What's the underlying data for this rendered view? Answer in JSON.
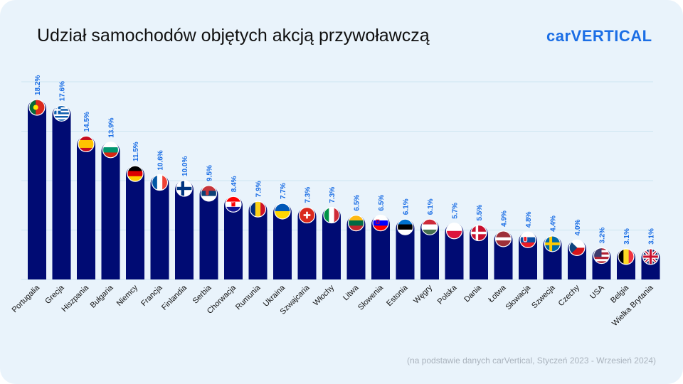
{
  "header": {
    "title": "Udział samochodów objętych akcją przywoławczą",
    "brand": "carVERTICAL"
  },
  "footer": {
    "source": "(na podstawie danych carVertical, Styczeń 2023 - Wrzesień 2024)"
  },
  "colors": {
    "bar": "#000b73",
    "value_label": "#1b6ee5",
    "background": "#e9f3fb",
    "gridline": "#cde5f0"
  },
  "chart_data": {
    "type": "bar",
    "title": "Udział samochodów objętych akcją przywoławczą",
    "ylim": [
      0,
      20
    ],
    "grid": true,
    "value_suffix": "%",
    "categories": [
      "Portugalia",
      "Grecja",
      "Hiszpania",
      "Bułgaria",
      "Niemcy",
      "Francja",
      "Finlandia",
      "Serbia",
      "Chorwacja",
      "Rumunia",
      "Ukraina",
      "Szwajcaria",
      "Włochy",
      "Litwa",
      "Słowenia",
      "Estonia",
      "Węgry",
      "Polska",
      "Dania",
      "Łotwa",
      "Słowacja",
      "Szwecja",
      "Czechy",
      "USA",
      "Belgia",
      "Wielka Brytania"
    ],
    "values": [
      18.2,
      17.6,
      14.5,
      13.9,
      11.5,
      10.6,
      10.0,
      9.5,
      8.4,
      7.9,
      7.7,
      7.3,
      7.3,
      6.5,
      6.5,
      6.1,
      6.1,
      5.7,
      5.5,
      4.9,
      4.8,
      4.4,
      4.0,
      3.2,
      3.1,
      3.1
    ],
    "value_labels": [
      "18.2%",
      "17.6%",
      "14.5%",
      "13.9%",
      "11.5%",
      "10.6%",
      "10.0%",
      "9.5%",
      "8.4%",
      "7.9%",
      "7.7%",
      "7.3%",
      "7.3%",
      "6.5%",
      "6.5%",
      "6.1%",
      "6.1%",
      "5.7%",
      "5.5%",
      "4.9%",
      "4.8%",
      "4.4%",
      "4.0%",
      "3.2%",
      "3.1%",
      "3.1%"
    ],
    "flags": [
      "portugal-flag-icon",
      "greece-flag-icon",
      "spain-flag-icon",
      "bulgaria-flag-icon",
      "germany-flag-icon",
      "france-flag-icon",
      "finland-flag-icon",
      "serbia-flag-icon",
      "croatia-flag-icon",
      "romania-flag-icon",
      "ukraine-flag-icon",
      "switzerland-flag-icon",
      "italy-flag-icon",
      "lithuania-flag-icon",
      "slovenia-flag-icon",
      "estonia-flag-icon",
      "hungary-flag-icon",
      "poland-flag-icon",
      "denmark-flag-icon",
      "latvia-flag-icon",
      "slovakia-flag-icon",
      "sweden-flag-icon",
      "czechia-flag-icon",
      "usa-flag-icon",
      "belgium-flag-icon",
      "uk-flag-icon"
    ]
  }
}
